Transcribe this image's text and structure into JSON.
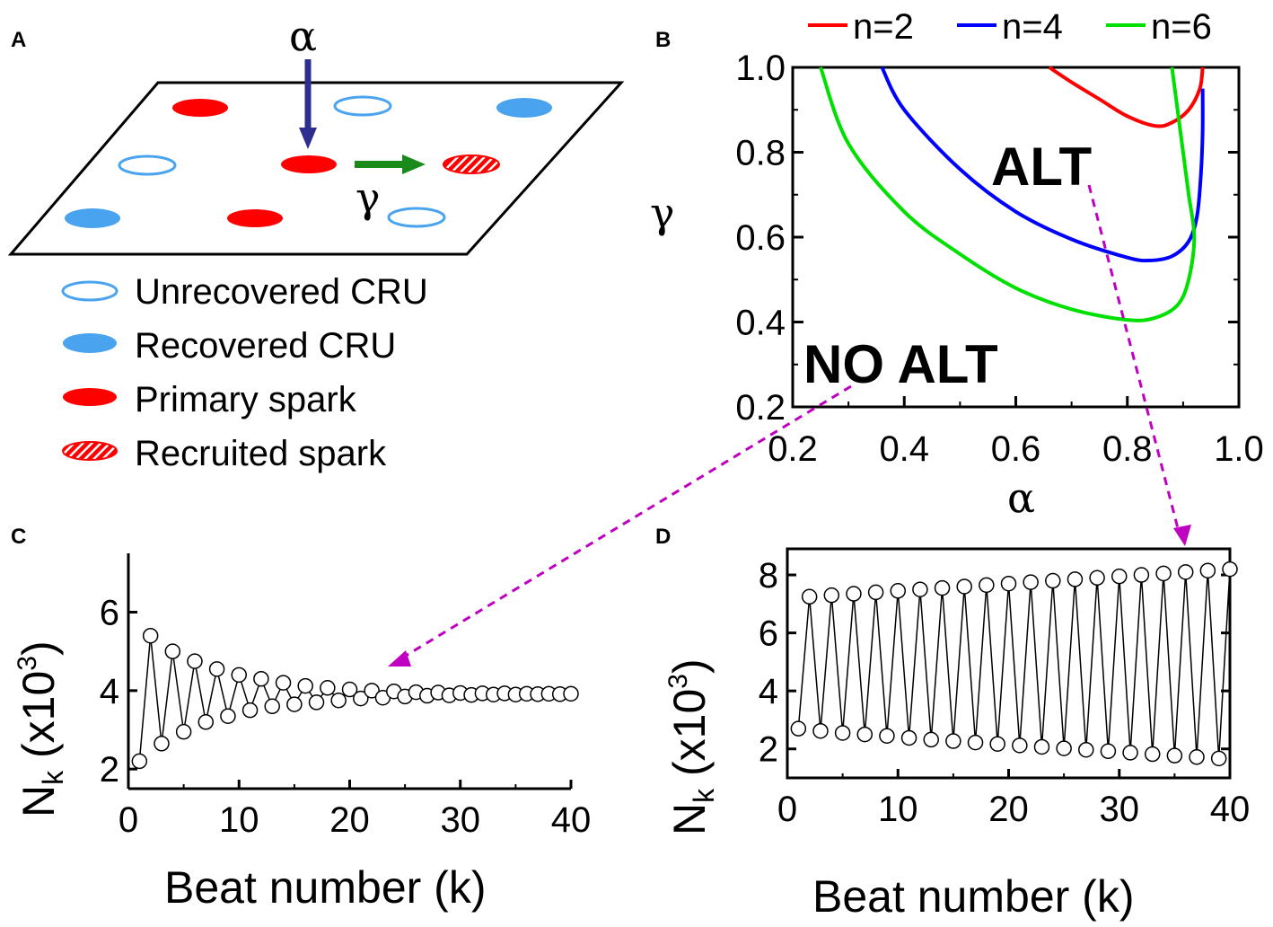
{
  "panels": {
    "a": {
      "label": "A",
      "alpha_symbol": "α",
      "gamma_symbol": "γ",
      "legend": [
        {
          "text": "Unrecovered CRU",
          "marker": "unrecovered"
        },
        {
          "text": "Recovered CRU",
          "marker": "recovered"
        },
        {
          "text": "Primary spark",
          "marker": "primary"
        },
        {
          "text": "Recruited spark",
          "marker": "recruited"
        }
      ]
    },
    "b": {
      "label": "B",
      "alt_label": "ALT",
      "noalt_label": "NO ALT"
    },
    "c": {
      "label": "C"
    },
    "d": {
      "label": "D"
    }
  },
  "colors": {
    "n2": "#ff0000",
    "n4": "#0000ff",
    "n6": "#00e000",
    "unrecovered": "#4aa3ef",
    "recovered": "#4aa3ef",
    "spark": "#ff0000",
    "alpha_arrow": "#2e2e8f",
    "gamma_arrow": "#1a8a1a",
    "link_arrow": "#c000c0"
  },
  "chart_data": [
    {
      "id": "B",
      "type": "line",
      "xlabel": "α",
      "ylabel": "γ",
      "xlim": [
        0.2,
        1.0
      ],
      "ylim": [
        0.2,
        1.0
      ],
      "xticks": [
        "0.2",
        "0.4",
        "0.6",
        "0.8",
        "1.0"
      ],
      "yticks": [
        "0.2",
        "0.4",
        "0.6",
        "0.8",
        "1.0"
      ],
      "legend": [
        "n=2",
        "n=4",
        "n=6"
      ],
      "series": [
        {
          "name": "n=2",
          "points": [
            [
              0.66,
              1.0
            ],
            [
              0.7,
              0.965
            ],
            [
              0.75,
              0.925
            ],
            [
              0.8,
              0.885
            ],
            [
              0.85,
              0.862
            ],
            [
              0.88,
              0.87
            ],
            [
              0.91,
              0.9
            ],
            [
              0.93,
              0.95
            ],
            [
              0.935,
              1.0
            ]
          ]
        },
        {
          "name": "n=4",
          "points": [
            [
              0.36,
              1.0
            ],
            [
              0.4,
              0.9
            ],
            [
              0.5,
              0.76
            ],
            [
              0.6,
              0.66
            ],
            [
              0.7,
              0.595
            ],
            [
              0.8,
              0.552
            ],
            [
              0.84,
              0.545
            ],
            [
              0.88,
              0.555
            ],
            [
              0.91,
              0.59
            ],
            [
              0.925,
              0.65
            ],
            [
              0.932,
              0.75
            ],
            [
              0.935,
              0.85
            ],
            [
              0.935,
              0.95
            ]
          ]
        },
        {
          "name": "n=6",
          "points": [
            [
              0.25,
              1.0
            ],
            [
              0.3,
              0.82
            ],
            [
              0.4,
              0.66
            ],
            [
              0.5,
              0.56
            ],
            [
              0.6,
              0.48
            ],
            [
              0.7,
              0.43
            ],
            [
              0.8,
              0.405
            ],
            [
              0.85,
              0.41
            ],
            [
              0.89,
              0.44
            ],
            [
              0.91,
              0.5
            ],
            [
              0.92,
              0.6
            ],
            [
              0.91,
              0.7
            ],
            [
              0.9,
              0.8
            ],
            [
              0.89,
              0.9
            ],
            [
              0.88,
              1.0
            ]
          ]
        }
      ]
    },
    {
      "id": "C",
      "type": "line",
      "xlabel": "Beat number (k)",
      "ylabel": "N",
      "ylabel_subscript": "k",
      "ylabel_unit": "(x10",
      "ylabel_unit_sup": "3",
      "ylabel_unit_close": ")",
      "xlim": [
        0,
        40
      ],
      "ylim": [
        1.5,
        7.5
      ],
      "xticks": [
        "0",
        "10",
        "20",
        "30",
        "40"
      ],
      "yticks": [
        "2",
        "4",
        "6"
      ],
      "x": [
        1,
        2,
        3,
        4,
        5,
        6,
        7,
        8,
        9,
        10,
        11,
        12,
        13,
        14,
        15,
        16,
        17,
        18,
        19,
        20,
        21,
        22,
        23,
        24,
        25,
        26,
        27,
        28,
        29,
        30,
        31,
        32,
        33,
        34,
        35,
        36,
        37,
        38,
        39,
        40
      ],
      "values": [
        2.2,
        5.4,
        2.65,
        5.0,
        2.95,
        4.75,
        3.2,
        4.55,
        3.35,
        4.4,
        3.5,
        4.3,
        3.6,
        4.2,
        3.65,
        4.12,
        3.7,
        4.07,
        3.75,
        4.03,
        3.8,
        4.0,
        3.82,
        3.98,
        3.85,
        3.96,
        3.87,
        3.95,
        3.88,
        3.94,
        3.89,
        3.93,
        3.9,
        3.93,
        3.9,
        3.92,
        3.91,
        3.92,
        3.91,
        3.92
      ]
    },
    {
      "id": "D",
      "type": "line",
      "xlabel": "Beat number (k)",
      "ylabel": "N",
      "ylabel_subscript": "k",
      "ylabel_unit": "(x10",
      "ylabel_unit_sup": "3",
      "ylabel_unit_close": ")",
      "xlim": [
        0,
        40
      ],
      "ylim": [
        1.0,
        8.9
      ],
      "xticks": [
        "0",
        "10",
        "20",
        "30",
        "40"
      ],
      "yticks": [
        "2",
        "4",
        "6",
        "8"
      ],
      "x": [
        1,
        2,
        3,
        4,
        5,
        6,
        7,
        8,
        9,
        10,
        11,
        12,
        13,
        14,
        15,
        16,
        17,
        18,
        19,
        20,
        21,
        22,
        23,
        24,
        25,
        26,
        27,
        28,
        29,
        30,
        31,
        32,
        33,
        34,
        35,
        36,
        37,
        38,
        39,
        40
      ],
      "values": [
        2.7,
        7.25,
        2.62,
        7.3,
        2.55,
        7.35,
        2.5,
        7.4,
        2.45,
        7.45,
        2.38,
        7.5,
        2.32,
        7.55,
        2.27,
        7.6,
        2.22,
        7.65,
        2.17,
        7.7,
        2.12,
        7.75,
        2.07,
        7.8,
        2.02,
        7.85,
        1.97,
        7.9,
        1.92,
        7.95,
        1.87,
        8.0,
        1.82,
        8.05,
        1.77,
        8.1,
        1.72,
        8.15,
        1.67,
        8.2
      ]
    }
  ]
}
